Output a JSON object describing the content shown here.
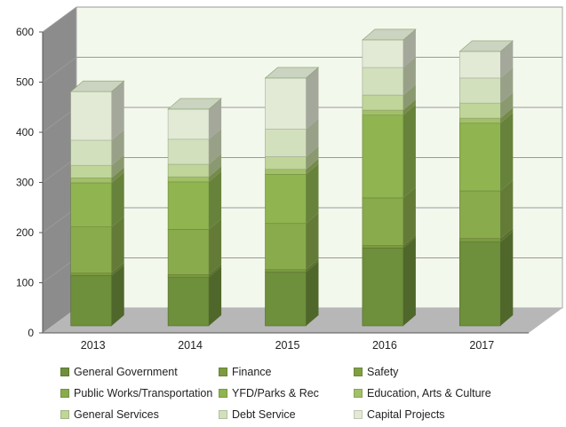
{
  "chart_data": {
    "type": "bar",
    "stacked": true,
    "three_d": true,
    "categories": [
      "2013",
      "2014",
      "2015",
      "2016",
      "2017"
    ],
    "ylim": [
      0,
      600
    ],
    "yticks": [
      "0",
      "100",
      "200",
      "300",
      "400",
      "500",
      "600"
    ],
    "grid": true,
    "legend_position": "bottom",
    "series": [
      {
        "name": "General Government",
        "values": [
          100,
          97,
          107,
          155,
          167
        ],
        "color": "#6e8f3b"
      },
      {
        "name": "Finance",
        "values": [
          5,
          5,
          5,
          5,
          7
        ],
        "color": "#7c9b40"
      },
      {
        "name": "Safety",
        "values": [
          0,
          0,
          0,
          0,
          0
        ],
        "color": "#7f9f42"
      },
      {
        "name": "Public Works/Transportation",
        "values": [
          92,
          90,
          92,
          95,
          95
        ],
        "color": "#8aab4c"
      },
      {
        "name": "YFD/Parks & Rec",
        "values": [
          88,
          95,
          98,
          165,
          135
        ],
        "color": "#8fb450"
      },
      {
        "name": "Education, Arts & Culture",
        "values": [
          10,
          10,
          10,
          10,
          10
        ],
        "color": "#a2c068"
      },
      {
        "name": "General Services",
        "values": [
          25,
          25,
          25,
          30,
          30
        ],
        "color": "#c0d59a"
      },
      {
        "name": "Debt Service",
        "values": [
          50,
          50,
          55,
          55,
          50
        ],
        "color": "#d3e0bd"
      },
      {
        "name": "Capital Projects",
        "values": [
          97,
          60,
          102,
          55,
          53
        ],
        "color": "#e2ead6"
      }
    ]
  }
}
